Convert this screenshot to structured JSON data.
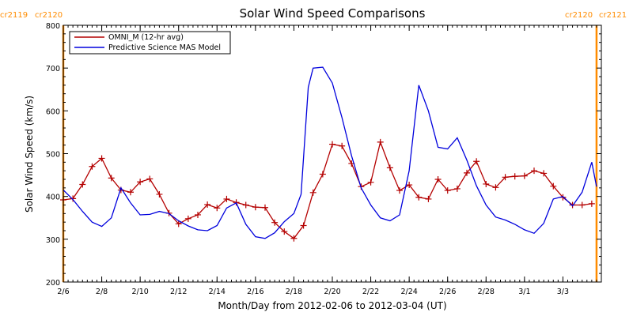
{
  "chart_data": {
    "type": "line",
    "title": "Solar Wind Speed Comparisons",
    "xlabel": "Month/Day from 2012-02-06 to 2012-03-04 (UT)",
    "ylabel": "Solar Wind Speed (km/s)",
    "xlim": [
      "2012-02-06T00:00",
      "2012-03-05T00:00"
    ],
    "ylim": [
      200,
      800
    ],
    "yticks": [
      200,
      300,
      400,
      500,
      600,
      700,
      800
    ],
    "xticks": [
      {
        "date": "2012-02-06",
        "label": "2/6"
      },
      {
        "date": "2012-02-08",
        "label": "2/8"
      },
      {
        "date": "2012-02-10",
        "label": "2/10"
      },
      {
        "date": "2012-02-12",
        "label": "2/12"
      },
      {
        "date": "2012-02-14",
        "label": "2/14"
      },
      {
        "date": "2012-02-16",
        "label": "2/16"
      },
      {
        "date": "2012-02-18",
        "label": "2/18"
      },
      {
        "date": "2012-02-20",
        "label": "2/20"
      },
      {
        "date": "2012-02-22",
        "label": "2/22"
      },
      {
        "date": "2012-02-24",
        "label": "2/24"
      },
      {
        "date": "2012-02-26",
        "label": "2/26"
      },
      {
        "date": "2012-02-28",
        "label": "2/28"
      },
      {
        "date": "2012-03-01",
        "label": "3/1"
      },
      {
        "date": "2012-03-03",
        "label": "3/3"
      }
    ],
    "legend_position": "top-left",
    "grid": false,
    "carrington_markers": [
      {
        "date": "2012-02-06T00:00",
        "labels": [
          "cr2119",
          "cr2120"
        ],
        "color": "#ff8c00"
      },
      {
        "date": "2012-03-04T18:00",
        "labels": [
          "cr2120",
          "cr2121"
        ],
        "color": "#ff8c00"
      }
    ],
    "series": [
      {
        "name": "OMNI_M (12-hr avg)",
        "color": "#b40000",
        "marker": "plus",
        "x": [
          "2012-02-06T00:00",
          "2012-02-06T12:00",
          "2012-02-07T00:00",
          "2012-02-07T12:00",
          "2012-02-08T00:00",
          "2012-02-08T12:00",
          "2012-02-09T00:00",
          "2012-02-09T12:00",
          "2012-02-10T00:00",
          "2012-02-10T12:00",
          "2012-02-11T00:00",
          "2012-02-11T12:00",
          "2012-02-12T00:00",
          "2012-02-12T12:00",
          "2012-02-13T00:00",
          "2012-02-13T12:00",
          "2012-02-14T00:00",
          "2012-02-14T12:00",
          "2012-02-15T00:00",
          "2012-02-15T12:00",
          "2012-02-16T00:00",
          "2012-02-16T12:00",
          "2012-02-17T00:00",
          "2012-02-17T12:00",
          "2012-02-18T00:00",
          "2012-02-18T12:00",
          "2012-02-19T00:00",
          "2012-02-19T12:00",
          "2012-02-20T00:00",
          "2012-02-20T12:00",
          "2012-02-21T00:00",
          "2012-02-21T12:00",
          "2012-02-22T00:00",
          "2012-02-22T12:00",
          "2012-02-23T00:00",
          "2012-02-23T12:00",
          "2012-02-24T00:00",
          "2012-02-24T12:00",
          "2012-02-25T00:00",
          "2012-02-25T12:00",
          "2012-02-26T00:00",
          "2012-02-26T12:00",
          "2012-02-27T00:00",
          "2012-02-27T12:00",
          "2012-02-28T00:00",
          "2012-02-28T12:00",
          "2012-02-29T00:00",
          "2012-02-29T12:00",
          "2012-03-01T00:00",
          "2012-03-01T12:00",
          "2012-03-02T00:00",
          "2012-03-02T12:00",
          "2012-03-03T00:00",
          "2012-03-03T12:00",
          "2012-03-04T00:00",
          "2012-03-04T12:00"
        ],
        "y": [
          392,
          395,
          428,
          470,
          489,
          443,
          415,
          410,
          434,
          441,
          405,
          361,
          336,
          348,
          357,
          381,
          373,
          394,
          386,
          380,
          375,
          374,
          339,
          318,
          302,
          332,
          409,
          452,
          522,
          518,
          477,
          423,
          433,
          527,
          467,
          414,
          427,
          398,
          394,
          440,
          414,
          418,
          455,
          482,
          429,
          421,
          445,
          447,
          448,
          460,
          454,
          424,
          398,
          380,
          380,
          383
        ]
      },
      {
        "name": "Predictive Science MAS Model",
        "color": "#0000dd",
        "marker": "none",
        "x": [
          "2012-02-06T00:00",
          "2012-02-06T12:00",
          "2012-02-07T00:00",
          "2012-02-07T12:00",
          "2012-02-08T00:00",
          "2012-02-08T12:00",
          "2012-02-09T00:00",
          "2012-02-09T12:00",
          "2012-02-10T00:00",
          "2012-02-10T12:00",
          "2012-02-11T00:00",
          "2012-02-11T12:00",
          "2012-02-12T00:00",
          "2012-02-12T12:00",
          "2012-02-13T00:00",
          "2012-02-13T12:00",
          "2012-02-14T00:00",
          "2012-02-14T12:00",
          "2012-02-15T00:00",
          "2012-02-15T12:00",
          "2012-02-16T00:00",
          "2012-02-16T12:00",
          "2012-02-17T00:00",
          "2012-02-17T12:00",
          "2012-02-18T00:00",
          "2012-02-18T09:00",
          "2012-02-18T18:00",
          "2012-02-19T00:00",
          "2012-02-19T12:00",
          "2012-02-20T00:00",
          "2012-02-20T12:00",
          "2012-02-21T00:00",
          "2012-02-21T12:00",
          "2012-02-22T00:00",
          "2012-02-22T12:00",
          "2012-02-23T00:00",
          "2012-02-23T12:00",
          "2012-02-24T00:00",
          "2012-02-24T12:00",
          "2012-02-25T00:00",
          "2012-02-25T12:00",
          "2012-02-26T00:00",
          "2012-02-26T12:00",
          "2012-02-27T00:00",
          "2012-02-27T12:00",
          "2012-02-28T00:00",
          "2012-02-28T12:00",
          "2012-02-29T00:00",
          "2012-02-29T12:00",
          "2012-03-01T00:00",
          "2012-03-01T12:00",
          "2012-03-02T00:00",
          "2012-03-02T12:00",
          "2012-03-03T00:00",
          "2012-03-03T12:00",
          "2012-03-04T00:00",
          "2012-03-04T12:00",
          "2012-03-04T18:00"
        ],
        "y": [
          415,
          393,
          365,
          340,
          330,
          350,
          420,
          385,
          357,
          358,
          365,
          360,
          343,
          331,
          322,
          320,
          332,
          373,
          385,
          335,
          306,
          302,
          315,
          341,
          360,
          405,
          655,
          700,
          702,
          665,
          585,
          495,
          420,
          380,
          350,
          343,
          357,
          460,
          660,
          600,
          515,
          511,
          537,
          485,
          425,
          380,
          352,
          345,
          335,
          322,
          314,
          337,
          394,
          400,
          378,
          410,
          480,
          423
        ]
      }
    ]
  }
}
